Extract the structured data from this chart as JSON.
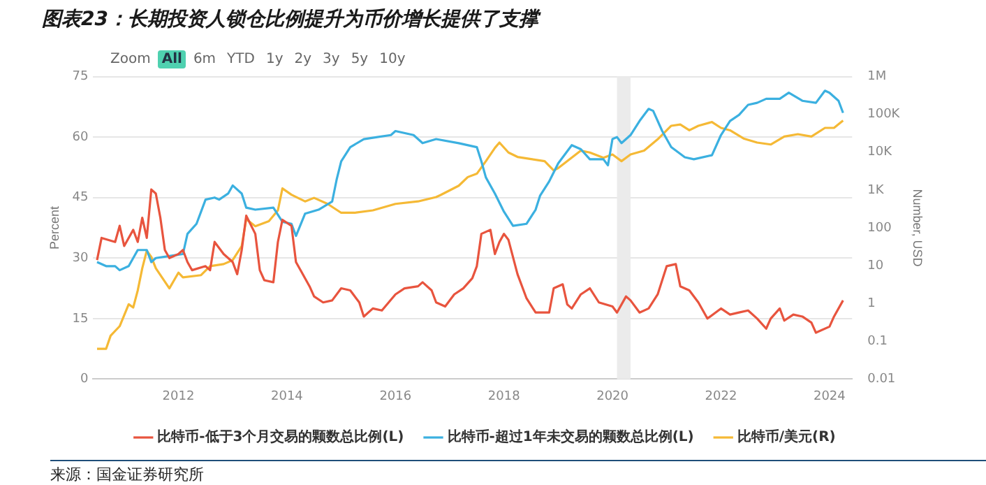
{
  "chart_data": {
    "type": "line",
    "title": "图表23：长期投资人锁仓比例提升为币价增长提供了支撑",
    "ylabel": "Percent",
    "y2label": "Number, USD",
    "xlim": [
      "2010-06",
      "2024-06"
    ],
    "xticks": [
      "2012",
      "2014",
      "2016",
      "2018",
      "2020",
      "2022",
      "2024"
    ],
    "ylim": [
      0,
      75
    ],
    "yticks": [
      0,
      15,
      30,
      45,
      60,
      75
    ],
    "y2lim": [
      0.01,
      1000000
    ],
    "y2ticks": [
      {
        "value": 0.01,
        "label": "0.01"
      },
      {
        "value": 0.1,
        "label": "0.1"
      },
      {
        "value": 1,
        "label": "1"
      },
      {
        "value": 10,
        "label": "10"
      },
      {
        "value": 100,
        "label": "100"
      },
      {
        "value": 1000,
        "label": "1K"
      },
      {
        "value": 10000,
        "label": "10K"
      },
      {
        "value": 100000,
        "label": "100K"
      },
      {
        "value": 1000000,
        "label": "1M"
      }
    ],
    "log": "y2",
    "grid": "y",
    "legend": "bottom",
    "marker": "none",
    "line_style": "solid",
    "bands": [
      {
        "axis": "x",
        "from": "2020-02",
        "to": "2020-05",
        "color": "#ebebeb"
      }
    ],
    "annotations": [
      "Zoom",
      "All",
      "6m",
      "YTD",
      "1y",
      "2y",
      "3y",
      "5y",
      "10y",
      "来源：国金证券研究所"
    ],
    "series": [
      {
        "name": "比特币-低于3个月交易的颗数总比例(L)",
        "color": "#e8543e",
        "axis": "y",
        "x": [
          "2010-07",
          "2010-08",
          "2010-11",
          "2010-12",
          "2011-01",
          "2011-03",
          "2011-04",
          "2011-05",
          "2011-06",
          "2011-07",
          "2011-08",
          "2011-09",
          "2011-10",
          "2011-11",
          "2012-01",
          "2012-02",
          "2012-03",
          "2012-04",
          "2012-07",
          "2012-08",
          "2012-09",
          "2012-11",
          "2013-01",
          "2013-02",
          "2013-03",
          "2013-04",
          "2013-06",
          "2013-07",
          "2013-08",
          "2013-10",
          "2013-11",
          "2013-12",
          "2014-02",
          "2014-03",
          "2014-04",
          "2014-06",
          "2014-07",
          "2014-09",
          "2014-11",
          "2015-01",
          "2015-03",
          "2015-05",
          "2015-06",
          "2015-08",
          "2015-10",
          "2016-01",
          "2016-03",
          "2016-06",
          "2016-07",
          "2016-09",
          "2016-10",
          "2016-12",
          "2017-02",
          "2017-04",
          "2017-06",
          "2017-07",
          "2017-08",
          "2017-10",
          "2017-11",
          "2017-12",
          "2018-01",
          "2018-02",
          "2018-04",
          "2018-06",
          "2018-08",
          "2018-11",
          "2018-12",
          "2019-02",
          "2019-03",
          "2019-04",
          "2019-06",
          "2019-08",
          "2019-10",
          "2020-01",
          "2020-02",
          "2020-04",
          "2020-05",
          "2020-07",
          "2020-09",
          "2020-11",
          "2021-01",
          "2021-03",
          "2021-04",
          "2021-06",
          "2021-08",
          "2021-10",
          "2022-01",
          "2022-03",
          "2022-05",
          "2022-07",
          "2022-09",
          "2022-11",
          "2022-12",
          "2023-02",
          "2023-03",
          "2023-05",
          "2023-07",
          "2023-09",
          "2023-10",
          "2024-01",
          "2024-02",
          "2024-04"
        ],
        "values": [
          29.5,
          35,
          34,
          38,
          33,
          37,
          34,
          40,
          35,
          47,
          46,
          40,
          32,
          30,
          31,
          32,
          29,
          27,
          28,
          27,
          34,
          31,
          29,
          26,
          32,
          40.5,
          36,
          27,
          24.5,
          24,
          34,
          39.5,
          38,
          29,
          27,
          23,
          20.5,
          19,
          19.5,
          22.5,
          22,
          19,
          15.5,
          17.5,
          17,
          21,
          22.5,
          23,
          24,
          22,
          19,
          18,
          21,
          22.5,
          25,
          28,
          36,
          37,
          31,
          34,
          36,
          34.5,
          26,
          20,
          16.5,
          16.5,
          22.5,
          23.5,
          18.5,
          17.5,
          21,
          22.5,
          19,
          18,
          16.5,
          20.5,
          19.5,
          16.5,
          17.5,
          21,
          28,
          28.5,
          23,
          22,
          19,
          15,
          17.5,
          16,
          16.5,
          17,
          15,
          12.5,
          15,
          17.5,
          14.5,
          16,
          15.5,
          14,
          11.5,
          13,
          15.5,
          19.5
        ]
      },
      {
        "name": "比特币-超过1年未交易的颗数总比例(L)",
        "color": "#3bb0e0",
        "axis": "y",
        "x": [
          "2010-07",
          "2010-09",
          "2010-11",
          "2010-12",
          "2011-02",
          "2011-04",
          "2011-06",
          "2011-07",
          "2011-08",
          "2011-11",
          "2012-02",
          "2012-03",
          "2012-05",
          "2012-07",
          "2012-09",
          "2012-10",
          "2012-12",
          "2013-01",
          "2013-03",
          "2013-04",
          "2013-06",
          "2013-10",
          "2013-12",
          "2014-02",
          "2014-03",
          "2014-05",
          "2014-08",
          "2014-11",
          "2014-12",
          "2015-01",
          "2015-03",
          "2015-06",
          "2015-09",
          "2015-12",
          "2016-01",
          "2016-05",
          "2016-07",
          "2016-10",
          "2017-03",
          "2017-07",
          "2017-08",
          "2017-09",
          "2017-11",
          "2018-01",
          "2018-03",
          "2018-06",
          "2018-08",
          "2018-09",
          "2018-11",
          "2019-01",
          "2019-04",
          "2019-06",
          "2019-08",
          "2019-11",
          "2019-12",
          "2020-01",
          "2020-02",
          "2020-03",
          "2020-05",
          "2020-07",
          "2020-09",
          "2020-10",
          "2020-12",
          "2021-02",
          "2021-05",
          "2021-07",
          "2021-11",
          "2022-01",
          "2022-03",
          "2022-05",
          "2022-07",
          "2022-09",
          "2022-11",
          "2023-02",
          "2023-04",
          "2023-07",
          "2023-10",
          "2023-12",
          "2024-01",
          "2024-03",
          "2024-04"
        ],
        "values": [
          29,
          28,
          28,
          27,
          28,
          32,
          32,
          29,
          30,
          30.5,
          31,
          36,
          38.5,
          44.5,
          45,
          44.5,
          46,
          48,
          46,
          42.5,
          42,
          42.5,
          39,
          38.5,
          35.5,
          41,
          42,
          44,
          49.5,
          54,
          57.5,
          59.5,
          60,
          60.5,
          61.5,
          60.5,
          58.5,
          59.5,
          58.5,
          57.5,
          54,
          50,
          46,
          41.5,
          38,
          38.5,
          42,
          45.5,
          49,
          53.5,
          58,
          57,
          54.5,
          54.5,
          53,
          59.5,
          60,
          58.5,
          60.5,
          64,
          67,
          66.5,
          61.5,
          57.5,
          55,
          54.5,
          55.5,
          60.5,
          64,
          65.5,
          68,
          68.5,
          69.5,
          69.5,
          71,
          69,
          68.5,
          71.5,
          71,
          69,
          66
        ]
      },
      {
        "name": "比特币/美元(R)",
        "color": "#f5b935",
        "axis": "y2",
        "x": [
          "2010-07",
          "2010-09",
          "2010-10",
          "2010-12",
          "2011-02",
          "2011-03",
          "2011-04",
          "2011-05",
          "2011-06",
          "2011-07",
          "2011-08",
          "2011-11",
          "2012-01",
          "2012-02",
          "2012-06",
          "2012-08",
          "2012-11",
          "2013-01",
          "2013-03",
          "2013-04",
          "2013-06",
          "2013-09",
          "2013-11",
          "2013-12",
          "2014-02",
          "2014-05",
          "2014-07",
          "2014-10",
          "2015-01",
          "2015-04",
          "2015-08",
          "2016-01",
          "2016-06",
          "2016-10",
          "2016-11",
          "2017-03",
          "2017-05",
          "2017-07",
          "2017-09",
          "2017-11",
          "2017-12",
          "2018-02",
          "2018-04",
          "2018-07",
          "2018-10",
          "2018-12",
          "2019-01",
          "2019-03",
          "2019-06",
          "2019-08",
          "2019-11",
          "2020-01",
          "2020-03",
          "2020-05",
          "2020-08",
          "2020-11",
          "2021-02",
          "2021-04",
          "2021-06",
          "2021-08",
          "2021-11",
          "2022-01",
          "2022-03",
          "2022-06",
          "2022-09",
          "2022-12",
          "2023-03",
          "2023-06",
          "2023-09",
          "2023-12",
          "2024-02",
          "2024-04"
        ],
        "values": [
          0.063,
          0.063,
          0.14,
          0.25,
          0.95,
          0.78,
          2.2,
          8.5,
          25,
          17,
          8.5,
          2.5,
          6.5,
          4.9,
          5.6,
          9.7,
          11,
          14,
          33,
          170,
          110,
          150,
          290,
          1100,
          750,
          500,
          620,
          430,
          250,
          250,
          290,
          430,
          500,
          650,
          740,
          1300,
          2200,
          2700,
          5800,
          13000,
          18000,
          9800,
          7500,
          6600,
          5800,
          3300,
          3800,
          5800,
          11000,
          9800,
          7100,
          8700,
          5800,
          8700,
          11000,
          22000,
          50000,
          54000,
          38000,
          50000,
          63000,
          44000,
          38000,
          23000,
          18000,
          16000,
          26000,
          30000,
          26000,
          44000,
          44000,
          69000
        ]
      }
    ]
  }
}
